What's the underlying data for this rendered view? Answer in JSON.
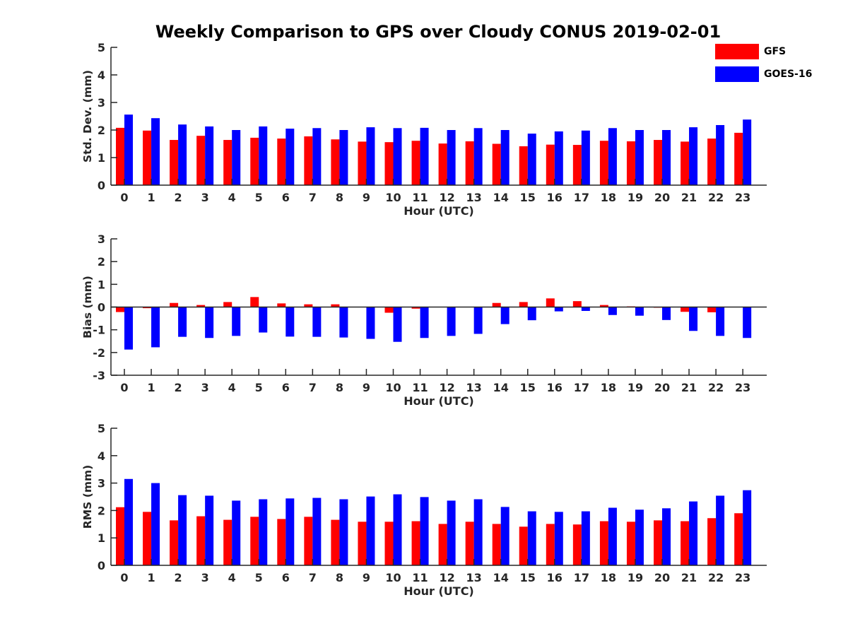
{
  "title": "Weekly Comparison to GPS over Cloudy CONUS 2019-02-01",
  "legend": [
    {
      "label": "GFS",
      "color": "#ff0000"
    },
    {
      "label": "GOES-16",
      "color": "#0000ff"
    }
  ],
  "chart_data": [
    {
      "type": "bar",
      "ylabel": "Std. Dev. (mm)",
      "xlabel": "Hour (UTC)",
      "ylim": [
        0,
        5
      ],
      "yticks": [
        0,
        1,
        2,
        3,
        4,
        5
      ],
      "categories": [
        "0",
        "1",
        "2",
        "3",
        "4",
        "5",
        "6",
        "7",
        "8",
        "9",
        "10",
        "11",
        "12",
        "13",
        "14",
        "15",
        "16",
        "17",
        "18",
        "19",
        "20",
        "21",
        "22",
        "23"
      ],
      "series": [
        {
          "name": "GFS",
          "color": "#ff0000",
          "values": [
            2.08,
            1.98,
            1.64,
            1.79,
            1.64,
            1.72,
            1.69,
            1.77,
            1.66,
            1.58,
            1.56,
            1.61,
            1.51,
            1.59,
            1.5,
            1.41,
            1.47,
            1.46,
            1.61,
            1.59,
            1.64,
            1.58,
            1.69,
            1.9
          ]
        },
        {
          "name": "GOES-16",
          "color": "#0000ff",
          "values": [
            2.56,
            2.43,
            2.2,
            2.13,
            2.0,
            2.13,
            2.05,
            2.07,
            2.0,
            2.1,
            2.07,
            2.08,
            2.0,
            2.07,
            2.0,
            1.87,
            1.95,
            1.98,
            2.07,
            2.0,
            2.0,
            2.1,
            2.18,
            2.38
          ]
        }
      ]
    },
    {
      "type": "bar",
      "ylabel": "Bias (mm)",
      "xlabel": "Hour (UTC)",
      "ylim": [
        -3,
        3
      ],
      "yticks": [
        -3,
        -2,
        -1,
        0,
        1,
        2,
        3
      ],
      "categories": [
        "0",
        "1",
        "2",
        "3",
        "4",
        "5",
        "6",
        "7",
        "8",
        "9",
        "10",
        "11",
        "12",
        "13",
        "14",
        "15",
        "16",
        "17",
        "18",
        "19",
        "20",
        "21",
        "22",
        "23"
      ],
      "series": [
        {
          "name": "GFS",
          "color": "#ff0000",
          "values": [
            -0.22,
            -0.05,
            0.18,
            0.09,
            0.22,
            0.44,
            0.16,
            0.12,
            0.12,
            0.0,
            -0.25,
            -0.07,
            0.0,
            0.0,
            0.18,
            0.22,
            0.38,
            0.26,
            0.09,
            0.03,
            -0.03,
            -0.21,
            -0.23,
            0.0
          ]
        },
        {
          "name": "GOES-16",
          "color": "#0000ff",
          "values": [
            -1.87,
            -1.77,
            -1.31,
            -1.36,
            -1.27,
            -1.12,
            -1.3,
            -1.31,
            -1.34,
            -1.4,
            -1.53,
            -1.36,
            -1.27,
            -1.18,
            -0.75,
            -0.58,
            -0.19,
            -0.17,
            -0.35,
            -0.38,
            -0.57,
            -1.05,
            -1.27,
            -1.36
          ]
        }
      ]
    },
    {
      "type": "bar",
      "ylabel": "RMS (mm)",
      "xlabel": "Hour (UTC)",
      "ylim": [
        0,
        5
      ],
      "yticks": [
        0,
        1,
        2,
        3,
        4,
        5
      ],
      "categories": [
        "0",
        "1",
        "2",
        "3",
        "4",
        "5",
        "6",
        "7",
        "8",
        "9",
        "10",
        "11",
        "12",
        "13",
        "14",
        "15",
        "16",
        "17",
        "18",
        "19",
        "20",
        "21",
        "22",
        "23"
      ],
      "series": [
        {
          "name": "GFS",
          "color": "#ff0000",
          "values": [
            2.12,
            1.95,
            1.64,
            1.79,
            1.66,
            1.77,
            1.69,
            1.77,
            1.66,
            1.59,
            1.59,
            1.61,
            1.51,
            1.59,
            1.51,
            1.41,
            1.51,
            1.49,
            1.61,
            1.59,
            1.64,
            1.61,
            1.72,
            1.9
          ]
        },
        {
          "name": "GOES-16",
          "color": "#0000ff",
          "values": [
            3.15,
            3.0,
            2.56,
            2.54,
            2.36,
            2.41,
            2.44,
            2.46,
            2.41,
            2.51,
            2.59,
            2.49,
            2.36,
            2.41,
            2.13,
            1.97,
            1.95,
            1.97,
            2.1,
            2.03,
            2.08,
            2.33,
            2.54,
            2.74
          ]
        }
      ]
    }
  ]
}
